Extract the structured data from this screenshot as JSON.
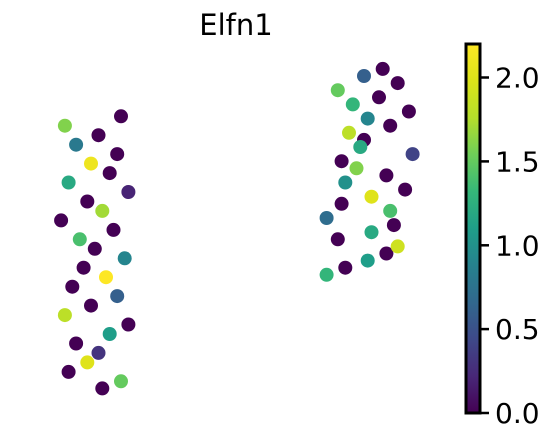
{
  "chart_data": {
    "type": "scatter",
    "title": "Elfn1",
    "xlabel": "",
    "ylabel": "",
    "grid": false,
    "axes_visible": false,
    "colormap": "viridis",
    "colorbar": {
      "vmin": 0.0,
      "vmax": 2.2,
      "ticks": [
        0.0,
        0.5,
        1.0,
        1.5,
        2.0
      ],
      "tick_labels": [
        "0.0",
        "0.5",
        "1.0",
        "1.5",
        "2.0"
      ],
      "placement": "right"
    },
    "clusters": [
      {
        "label_shown": false,
        "x": [
          1.2,
          1.7,
          0.3,
          0.8,
          1.1,
          0.5,
          1.4,
          1.9,
          0.2,
          0.9,
          1.6,
          0.4,
          1.3,
          0.7,
          1.8,
          1.0,
          0.6,
          1.5,
          0.1,
          1.2,
          0.8,
          1.9,
          0.3,
          1.4,
          0.9,
          1.6,
          0.5,
          1.1,
          0.2,
          1.7
        ],
        "y": [
          0.2,
          0.5,
          0.9,
          1.3,
          1.7,
          2.1,
          2.5,
          2.9,
          3.3,
          3.7,
          4.1,
          4.5,
          4.9,
          5.3,
          5.7,
          6.1,
          6.5,
          6.9,
          7.3,
          7.7,
          8.1,
          8.5,
          8.9,
          9.3,
          9.7,
          10.1,
          10.5,
          10.9,
          11.3,
          11.7
        ],
        "expression": [
          0.0,
          1.5,
          0.0,
          2.0,
          0.3,
          0.0,
          1.1,
          0.0,
          1.8,
          0.0,
          0.6,
          0.0,
          2.2,
          0.0,
          0.9,
          0.0,
          1.4,
          0.0,
          0.0,
          1.7,
          0.0,
          0.2,
          1.2,
          0.0,
          2.1,
          0.0,
          0.8,
          0.0,
          1.6,
          0.0
        ]
      },
      {
        "label_shown": false,
        "x": [
          7.2,
          7.7,
          8.3,
          8.8,
          9.1,
          7.5,
          8.4,
          9.0,
          7.2,
          8.9,
          7.6,
          8.4,
          9.3,
          7.7,
          8.8,
          8.0,
          7.6,
          9.5,
          8.1,
          8.2,
          7.8,
          8.9,
          8.3,
          9.4,
          7.9,
          8.6,
          7.5,
          9.1,
          8.2,
          8.7
        ],
        "y": [
          5.0,
          5.3,
          5.6,
          5.9,
          6.2,
          6.5,
          6.8,
          7.1,
          7.4,
          7.7,
          8.0,
          8.3,
          8.6,
          8.9,
          9.2,
          9.5,
          9.8,
          10.1,
          10.4,
          10.7,
          11.0,
          11.3,
          11.6,
          11.9,
          12.2,
          12.5,
          12.8,
          13.1,
          13.4,
          13.7
        ],
        "expression": [
          1.3,
          0.0,
          1.1,
          0.0,
          1.9,
          0.0,
          1.2,
          0.0,
          0.7,
          1.4,
          0.0,
          2.0,
          0.0,
          1.0,
          0.0,
          1.6,
          0.0,
          0.4,
          1.2,
          0.0,
          1.8,
          0.0,
          0.9,
          0.0,
          1.3,
          0.0,
          1.5,
          0.0,
          0.6,
          0.0
        ]
      }
    ],
    "xlim": [
      -1.0,
      10.5
    ],
    "ylim": [
      -0.5,
      14.5
    ]
  }
}
